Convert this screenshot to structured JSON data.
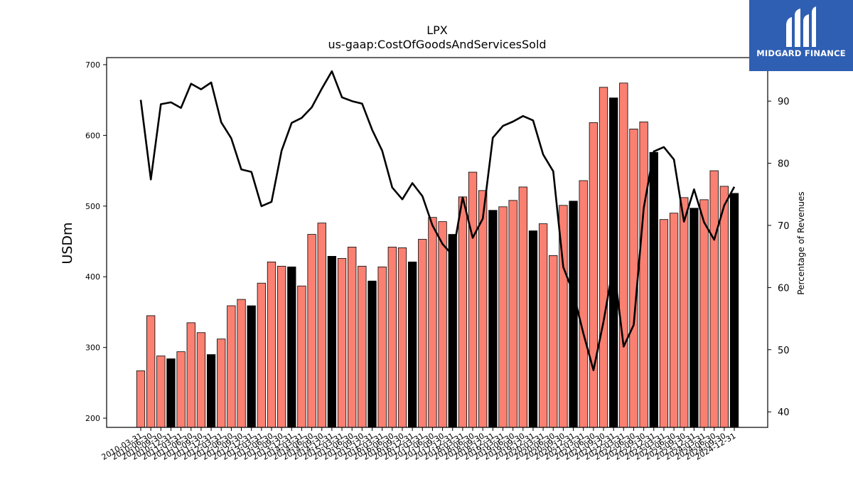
{
  "brand": {
    "name": "MIDGARD FINANCE",
    "color": "#2f5fb3",
    "logo_icon": "midgard-logo-icon"
  },
  "chart_data": {
    "type": "bar",
    "title": "LPX",
    "subtitle": "us-gaap:CostOfGoodsAndServicesSold",
    "ylabel": "USDm",
    "y2label": "Percentage of Revenues",
    "ylim": [
      187,
      710
    ],
    "y2lim": [
      37.5,
      97.0
    ],
    "yticks": [
      200,
      300,
      400,
      500,
      600,
      700
    ],
    "y2ticks": [
      40,
      50,
      60,
      70,
      80,
      90
    ],
    "bar_color_q": "#fa8072",
    "bar_color_annual": "#000000",
    "line_color": "#000000",
    "categories": [
      "2010-03-31",
      "2010-06-30",
      "2010-09-30",
      "2010-12-31",
      "2011-03-31",
      "2011-06-30",
      "2011-09-30",
      "2011-12-31",
      "2012-03-31",
      "2012-06-30",
      "2012-09-30",
      "2012-12-31",
      "2013-03-31",
      "2013-06-30",
      "2013-09-30",
      "2013-12-31",
      "2014-03-31",
      "2014-06-30",
      "2014-09-30",
      "2014-12-31",
      "2015-03-31",
      "2015-06-30",
      "2015-09-30",
      "2015-12-31",
      "2016-03-31",
      "2016-06-30",
      "2016-09-30",
      "2016-12-31",
      "2017-03-31",
      "2017-06-30",
      "2017-09-30",
      "2017-12-31",
      "2018-03-31",
      "2018-06-30",
      "2018-09-30",
      "2018-12-31",
      "2019-03-31",
      "2019-06-30",
      "2019-09-30",
      "2019-12-31",
      "2020-03-31",
      "2020-06-30",
      "2020-09-30",
      "2020-12-31",
      "2021-03-31",
      "2021-06-30",
      "2021-09-30",
      "2021-12-31",
      "2022-03-31",
      "2022-06-30",
      "2022-09-30",
      "2022-12-31",
      "2023-03-31",
      "2023-06-30",
      "2023-09-30",
      "2023-12-31",
      "2024-03-31",
      "2024-06-30",
      "2024-09-30",
      "2024-12-31"
    ],
    "tick_labels": [
      "2010-03-31",
      "2010-06-30",
      "2010-09-30",
      "2010-12-31",
      "2011-03-31",
      "2011-06-30",
      "2011-09-30",
      "2011-12-31",
      "2012-03-31",
      "2012-06-30",
      "2012-09-30",
      "2012-12-31",
      "2013-03-31",
      "2013-06-30",
      "2013-09-30",
      "2013-12-31",
      "2014-03-31",
      "2014-06-30",
      "2014-09-30",
      "2014-12-31",
      "2015-03-31",
      "2015-06-30",
      "2015-09-30",
      "2015-12-31",
      "2016-03-31",
      "2016-06-30",
      "2016-09-30",
      "2016-12-31",
      "2017-03-31",
      "2017-06-30",
      "2017-09-30",
      "2017-12-31",
      "2018-03-31",
      "2018-06-30",
      "2018-09-30",
      "2018-12-31",
      "2019-03-31",
      "2019-06-30",
      "2019-09-30",
      "2019-12-31",
      "2020-03-31",
      "2020-06-30",
      "2020-09-30",
      "2020-12-31",
      "2021-03-31",
      "2021-06-30",
      "2021-09-30",
      "2021-12-31",
      "2022-03-31",
      "2022-06-30",
      "2022-09-30",
      "2022-12-31",
      "2023-03-31",
      "2023-06-30",
      "2023-09-30",
      "2023-12-31",
      "2024-03-31",
      "2024-06-30",
      "2024-09-30",
      "2024-12-31"
    ],
    "bar_values": [
      267,
      345,
      288,
      284,
      294,
      335,
      321,
      290,
      312,
      359,
      368,
      359,
      391,
      421,
      415,
      414,
      387,
      460,
      476,
      429,
      426,
      442,
      415,
      394,
      414,
      442,
      441,
      421,
      453,
      484,
      478,
      460,
      513,
      548,
      522,
      494,
      499,
      508,
      527,
      465,
      475,
      430,
      501,
      507,
      536,
      618,
      668,
      653,
      674,
      609,
      619,
      576,
      481,
      490,
      512,
      497,
      509,
      550,
      528,
      518
    ],
    "bar_is_annual": [
      false,
      false,
      false,
      true,
      false,
      false,
      false,
      true,
      false,
      false,
      false,
      true,
      false,
      false,
      false,
      true,
      false,
      false,
      false,
      true,
      false,
      false,
      false,
      true,
      false,
      false,
      false,
      true,
      false,
      false,
      false,
      true,
      false,
      false,
      false,
      true,
      false,
      false,
      false,
      true,
      false,
      false,
      false,
      true,
      false,
      false,
      false,
      true,
      false,
      false,
      false,
      true,
      false,
      false,
      false,
      true,
      false,
      false,
      false,
      true
    ],
    "line_values": [
      90.2,
      77.4,
      89.5,
      89.8,
      88.9,
      92.8,
      91.9,
      93.0,
      86.6,
      84.0,
      79.0,
      78.6,
      73.1,
      73.8,
      82.0,
      86.5,
      87.3,
      89.0,
      92.0,
      94.8,
      90.6,
      90.0,
      89.6,
      85.4,
      82.0,
      76.1,
      74.2,
      76.8,
      74.7,
      70.0,
      67.0,
      65.2,
      74.5,
      68.0,
      71.1,
      84.1,
      86.0,
      86.7,
      87.6,
      86.9,
      81.4,
      78.7,
      63.3,
      59.1,
      52.6,
      46.7,
      54.5,
      63.8,
      50.5,
      54.0,
      72.8,
      81.9,
      82.6,
      80.6,
      70.6,
      75.8,
      70.5,
      67.7,
      73.2,
      76.2
    ]
  }
}
